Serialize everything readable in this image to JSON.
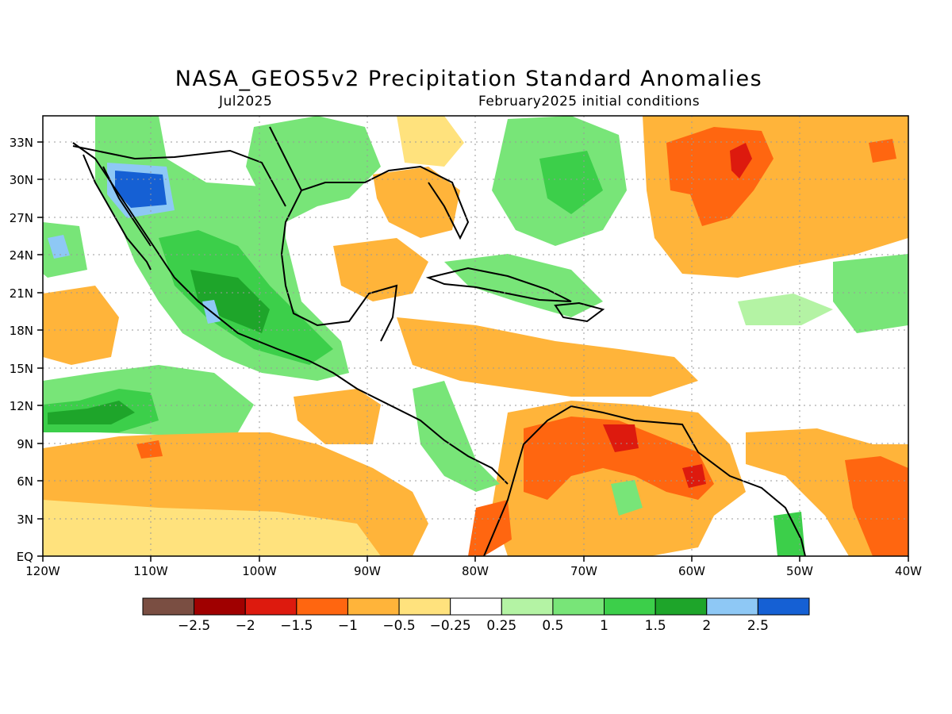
{
  "title": "NASA_GEOS5v2 Precipitation Standard Anomalies",
  "subtitle_left": "Jul2025",
  "subtitle_right": "February2025 initial conditions",
  "lat_labels": [
    "EQ",
    "3N",
    "6N",
    "9N",
    "12N",
    "15N",
    "18N",
    "21N",
    "24N",
    "27N",
    "30N",
    "33N"
  ],
  "lon_labels": [
    "120W",
    "110W",
    "100W",
    "90W",
    "80W",
    "70W",
    "60W",
    "50W",
    "40W"
  ],
  "colorbar": {
    "colors": [
      "#7a4e42",
      "#a00000",
      "#dd1a0e",
      "#ff6610",
      "#ffb43a",
      "#ffe27d",
      "#ffffff",
      "#b4f3a4",
      "#78e578",
      "#3ccf4a",
      "#1ea52a",
      "#8ec8f5",
      "#1560d4"
    ],
    "labels": [
      "−2.5",
      "−2",
      "−1.5",
      "−1",
      "−0.5",
      "−0.25",
      "0.25",
      "0.5",
      "1",
      "1.5",
      "2",
      "2.5"
    ]
  }
}
